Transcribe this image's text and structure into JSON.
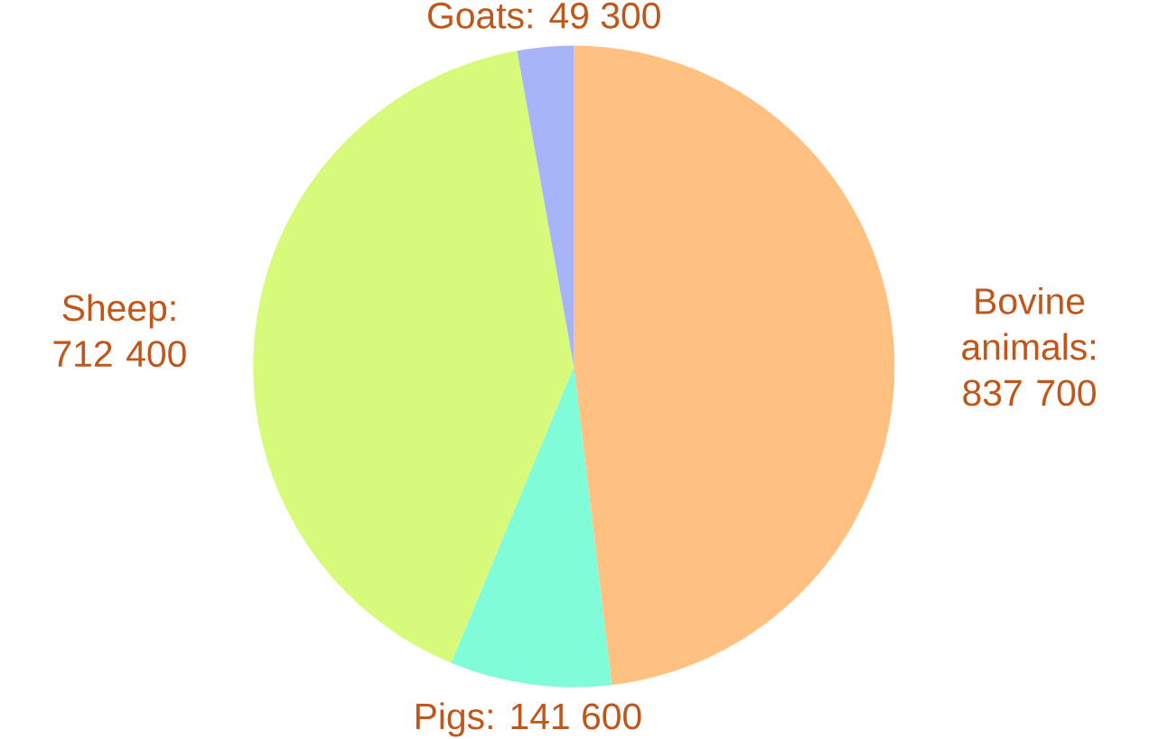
{
  "chart_data": {
    "type": "pie",
    "categories": [
      "Bovine animals: 837 700",
      "Pigs: 141 600",
      "Sheep: 712 400",
      "Goats: 49 300"
    ],
    "values": [
      837700,
      141600,
      712400,
      49300
    ],
    "colors": [
      "#ffc080",
      "#80fcd8",
      "#d8fa7a",
      "#a8b4f8"
    ]
  }
}
